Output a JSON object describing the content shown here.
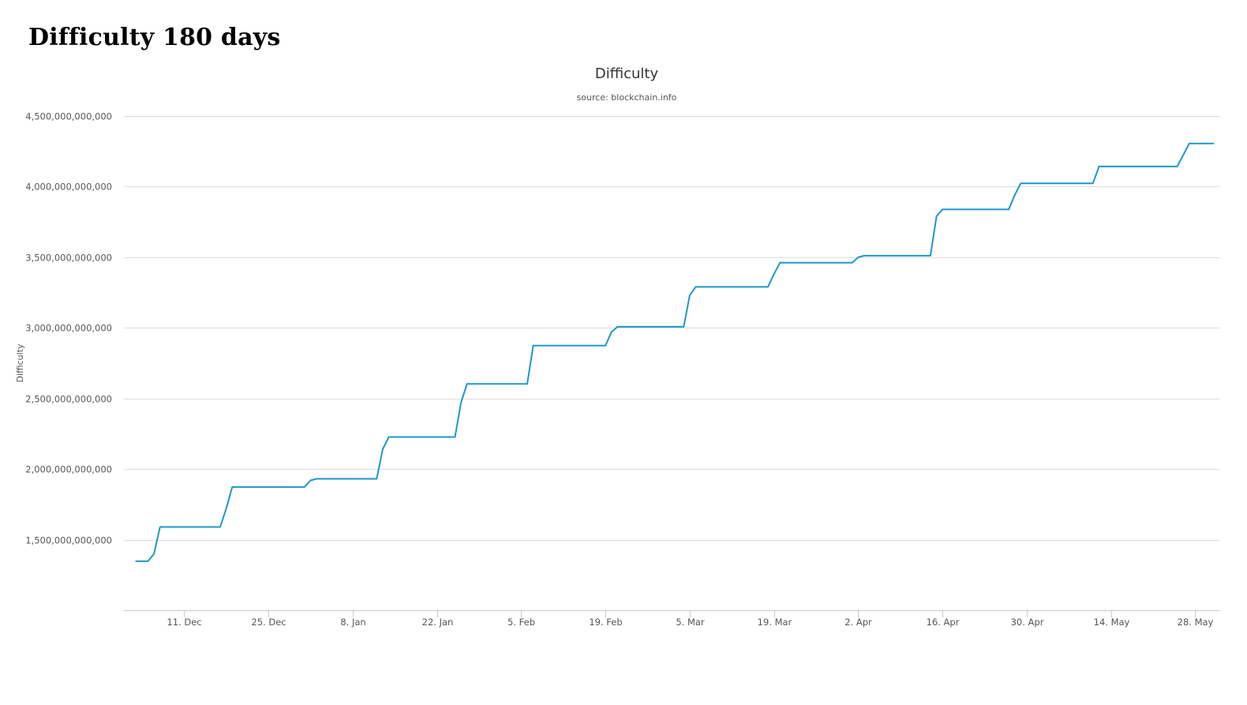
{
  "heading": "Difficulty 180 days",
  "colors": {
    "series": "#1f97c8",
    "grid": "#dcdcdc",
    "axis_line": "#c8c8c8",
    "text": "#555555"
  },
  "chart_data": {
    "type": "line",
    "title": "Difficulty",
    "subtitle": "source: blockchain.info",
    "ylabel": "Difficulty",
    "xlabel": "",
    "grid": true,
    "legend": "none",
    "ylim": [
      1000000000000,
      4500000000000
    ],
    "y_ticks": [
      1500000000000,
      2000000000000,
      2500000000000,
      3000000000000,
      3500000000000,
      4000000000000,
      4500000000000
    ],
    "y_tick_labels": [
      "1,500,000,000,000",
      "2,000,000,000,000",
      "2,500,000,000,000",
      "3,000,000,000,000",
      "3,500,000,000,000",
      "4,000,000,000,000",
      "4,500,000,000,000"
    ],
    "xlim": [
      "2017-12-01",
      "2018-06-01"
    ],
    "x_ticks": [
      "2017-12-11",
      "2017-12-25",
      "2018-01-08",
      "2018-01-22",
      "2018-02-05",
      "2018-02-19",
      "2018-03-05",
      "2018-03-19",
      "2018-04-02",
      "2018-04-16",
      "2018-04-30",
      "2018-05-14",
      "2018-05-28"
    ],
    "x_tick_labels": [
      "11. Dec",
      "25. Dec",
      "8. Jan",
      "22. Jan",
      "5. Feb",
      "19. Feb",
      "5. Mar",
      "19. Mar",
      "2. Apr",
      "16. Apr",
      "30. Apr",
      "14. May",
      "28. May"
    ],
    "series": [
      {
        "name": "",
        "x": [
          "2017-12-03",
          "2017-12-05",
          "2017-12-06",
          "2017-12-07",
          "2017-12-17",
          "2017-12-18",
          "2017-12-19",
          "2017-12-31",
          "2018-01-01",
          "2018-01-02",
          "2018-01-12",
          "2018-01-13",
          "2018-01-14",
          "2018-01-25",
          "2018-01-26",
          "2018-01-27",
          "2018-02-06",
          "2018-02-07",
          "2018-02-19",
          "2018-02-20",
          "2018-02-21",
          "2018-03-04",
          "2018-03-05",
          "2018-03-06",
          "2018-03-18",
          "2018-03-19",
          "2018-03-20",
          "2018-04-01",
          "2018-04-02",
          "2018-04-03",
          "2018-04-14",
          "2018-04-15",
          "2018-04-16",
          "2018-04-27",
          "2018-04-28",
          "2018-04-29",
          "2018-05-11",
          "2018-05-12",
          "2018-05-25",
          "2018-05-27",
          "2018-05-31"
        ],
        "y": [
          1347000000000,
          1347000000000,
          1400000000000,
          1590000000000,
          1590000000000,
          1720000000000,
          1873000000000,
          1873000000000,
          1920000000000,
          1931000000000,
          1931000000000,
          2140000000000,
          2227000000000,
          2227000000000,
          2470000000000,
          2603000000000,
          2603000000000,
          2874000000000,
          2874000000000,
          2970000000000,
          3008000000000,
          3008000000000,
          3230000000000,
          3290000000000,
          3290000000000,
          3380000000000,
          3462000000000,
          3462000000000,
          3500000000000,
          3511000000000,
          3511000000000,
          3790000000000,
          3839000000000,
          3839000000000,
          3940000000000,
          4023000000000,
          4023000000000,
          4143000000000,
          4143000000000,
          4306000000000,
          4306000000000
        ]
      }
    ]
  }
}
